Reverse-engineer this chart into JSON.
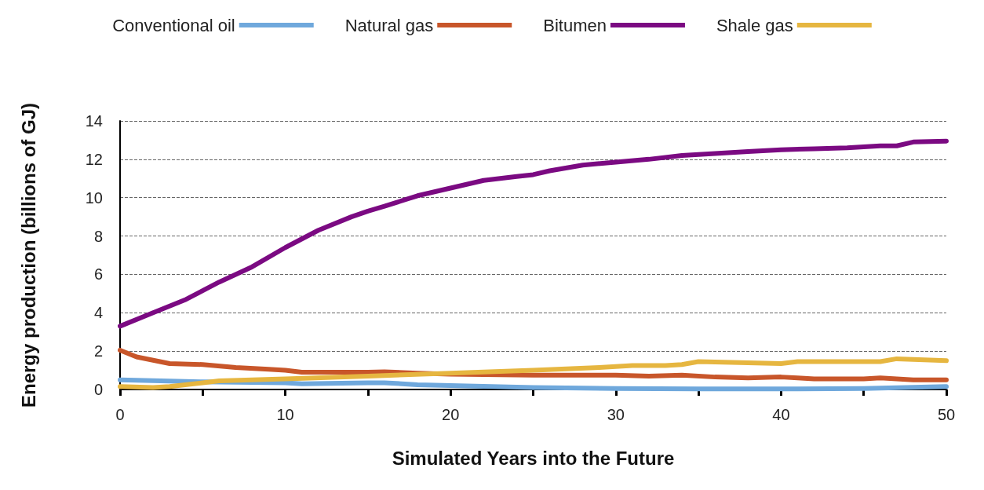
{
  "chart_data": {
    "type": "line",
    "xlabel": "Simulated Years into the Future",
    "ylabel": "Energy production (billions of GJ)",
    "xlim": [
      0,
      50
    ],
    "xticks": [
      0,
      {
        "value": 5,
        "label": null
      },
      10,
      {
        "value": 15,
        "label": null
      },
      20,
      {
        "value": 25,
        "label": null
      },
      30,
      {
        "value": 35,
        "label": null
      },
      40,
      {
        "value": 45,
        "label": null
      },
      50
    ],
    "ylim": [
      0,
      14
    ],
    "yticks": [
      0,
      2,
      4,
      6,
      8,
      10,
      12,
      14
    ],
    "grid": "y",
    "legend": "top",
    "marker": "none",
    "line_style": "solid",
    "series": [
      {
        "name": "Conventional oil",
        "color": "#6fa8dc",
        "x": [
          0,
          5,
          10,
          11,
          15,
          16,
          18,
          20,
          25,
          30,
          35,
          40,
          45,
          50
        ],
        "values": [
          0.5,
          0.4,
          0.35,
          0.3,
          0.35,
          0.35,
          0.25,
          0.2,
          0.1,
          0.05,
          0.03,
          0.03,
          0.05,
          0.15
        ]
      },
      {
        "name": "Natural gas",
        "color": "#c8562a",
        "x": [
          0,
          1,
          3,
          5,
          7,
          9,
          10,
          11,
          15,
          16,
          18,
          20,
          25,
          30,
          32,
          34,
          36,
          38,
          40,
          41,
          42,
          45,
          46,
          48,
          50
        ],
        "values": [
          2.05,
          1.7,
          1.35,
          1.3,
          1.15,
          1.05,
          1.0,
          0.9,
          0.9,
          0.92,
          0.85,
          0.8,
          0.75,
          0.75,
          0.7,
          0.75,
          0.65,
          0.6,
          0.65,
          0.6,
          0.55,
          0.55,
          0.6,
          0.5,
          0.5
        ]
      },
      {
        "name": "Bitumen",
        "color": "#7b0a82",
        "x": [
          0,
          2,
          4,
          6,
          8,
          10,
          12,
          14,
          15,
          16,
          18,
          20,
          22,
          24,
          25,
          26,
          28,
          30,
          32,
          34,
          36,
          38,
          40,
          42,
          44,
          46,
          47,
          48,
          50
        ],
        "values": [
          3.3,
          4.0,
          4.7,
          5.6,
          6.4,
          7.4,
          8.3,
          9.0,
          9.3,
          9.55,
          10.1,
          10.5,
          10.9,
          11.1,
          11.2,
          11.4,
          11.7,
          11.85,
          12.0,
          12.2,
          12.3,
          12.4,
          12.5,
          12.55,
          12.6,
          12.7,
          12.7,
          12.9,
          12.95
        ]
      },
      {
        "name": "Shale gas",
        "color": "#e6b640",
        "x": [
          0,
          2,
          3,
          5,
          6,
          10,
          15,
          20,
          25,
          29,
          31,
          33,
          34,
          35,
          40,
          41,
          46,
          47,
          50
        ],
        "values": [
          0.15,
          0.1,
          0.15,
          0.35,
          0.45,
          0.55,
          0.7,
          0.85,
          1.0,
          1.15,
          1.25,
          1.25,
          1.3,
          1.45,
          1.35,
          1.45,
          1.45,
          1.6,
          1.5
        ]
      }
    ]
  }
}
